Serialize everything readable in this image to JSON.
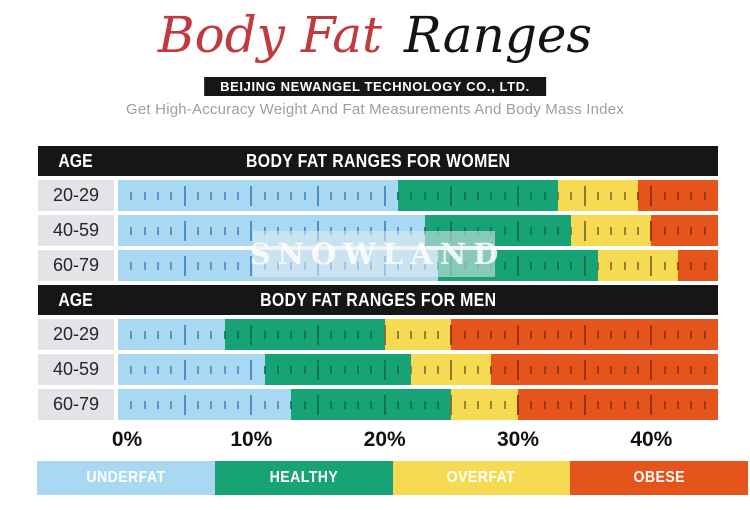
{
  "header": {
    "title": {
      "red_part": "Body Fat",
      "black_part": "Ranges"
    },
    "company_banner": "BEIJING NEWANGEL TECHNOLOGY CO., LTD.",
    "subtitle": "Get High-Accuracy Weight And Fat Measurements And Body Mass Index"
  },
  "watermark": {
    "text": "SNOWLAND"
  },
  "chart_data": {
    "type": "bar",
    "subtype": "stacked-range",
    "unit": "percent body fat",
    "axis": {
      "min": 0,
      "max": 45,
      "tick_labels": [
        "0%",
        "10%",
        "20%",
        "30%",
        "40%"
      ],
      "tick_values": [
        0,
        10,
        20,
        30,
        40
      ],
      "minor_tick_step": 1,
      "major_tick_step": 5
    },
    "age_column_header": "AGE",
    "sections": [
      {
        "title": "BODY FAT RANGES FOR WOMEN",
        "rows": [
          {
            "age": "20-29",
            "segments": [
              {
                "range": "underfat",
                "from": 0,
                "to": 21
              },
              {
                "range": "healthy",
                "from": 21,
                "to": 33
              },
              {
                "range": "overfat",
                "from": 33,
                "to": 39
              },
              {
                "range": "obese",
                "from": 39,
                "to": 45
              }
            ]
          },
          {
            "age": "40-59",
            "segments": [
              {
                "range": "underfat",
                "from": 0,
                "to": 23
              },
              {
                "range": "healthy",
                "from": 23,
                "to": 34
              },
              {
                "range": "overfat",
                "from": 34,
                "to": 40
              },
              {
                "range": "obese",
                "from": 40,
                "to": 45
              }
            ]
          },
          {
            "age": "60-79",
            "segments": [
              {
                "range": "underfat",
                "from": 0,
                "to": 24
              },
              {
                "range": "healthy",
                "from": 24,
                "to": 36
              },
              {
                "range": "overfat",
                "from": 36,
                "to": 42
              },
              {
                "range": "obese",
                "from": 42,
                "to": 45
              }
            ]
          }
        ]
      },
      {
        "title": "BODY FAT RANGES FOR MEN",
        "rows": [
          {
            "age": "20-29",
            "segments": [
              {
                "range": "underfat",
                "from": 0,
                "to": 8
              },
              {
                "range": "healthy",
                "from": 8,
                "to": 20
              },
              {
                "range": "overfat",
                "from": 20,
                "to": 25
              },
              {
                "range": "obese",
                "from": 25,
                "to": 45
              }
            ]
          },
          {
            "age": "40-59",
            "segments": [
              {
                "range": "underfat",
                "from": 0,
                "to": 11
              },
              {
                "range": "healthy",
                "from": 11,
                "to": 22
              },
              {
                "range": "overfat",
                "from": 22,
                "to": 28
              },
              {
                "range": "obese",
                "from": 28,
                "to": 45
              }
            ]
          },
          {
            "age": "60-79",
            "segments": [
              {
                "range": "underfat",
                "from": 0,
                "to": 13
              },
              {
                "range": "healthy",
                "from": 13,
                "to": 25
              },
              {
                "range": "overfat",
                "from": 25,
                "to": 30
              },
              {
                "range": "obese",
                "from": 30,
                "to": 45
              }
            ]
          }
        ]
      }
    ],
    "legend": [
      {
        "label": "UNDERFAT",
        "key": "underfat"
      },
      {
        "label": "HEALTHY",
        "key": "healthy"
      },
      {
        "label": "OVERFAT",
        "key": "overfat"
      },
      {
        "label": "OBESE",
        "key": "obese"
      }
    ]
  },
  "colors": {
    "underfat": "#A9D9F2",
    "healthy": "#18A377",
    "overfat": "#F6DB52",
    "obese": "#E4541B",
    "tick_underfat": "#4187BE",
    "tick_healthy": "#0B6E50",
    "tick_overfat": "#7A6E2E",
    "tick_obese": "#8F2E0B",
    "header_bar": "#161616",
    "age_cell": "#E4E3E8",
    "title_red": "#C03A40",
    "subtitle_gray": "#9E9E9E"
  }
}
